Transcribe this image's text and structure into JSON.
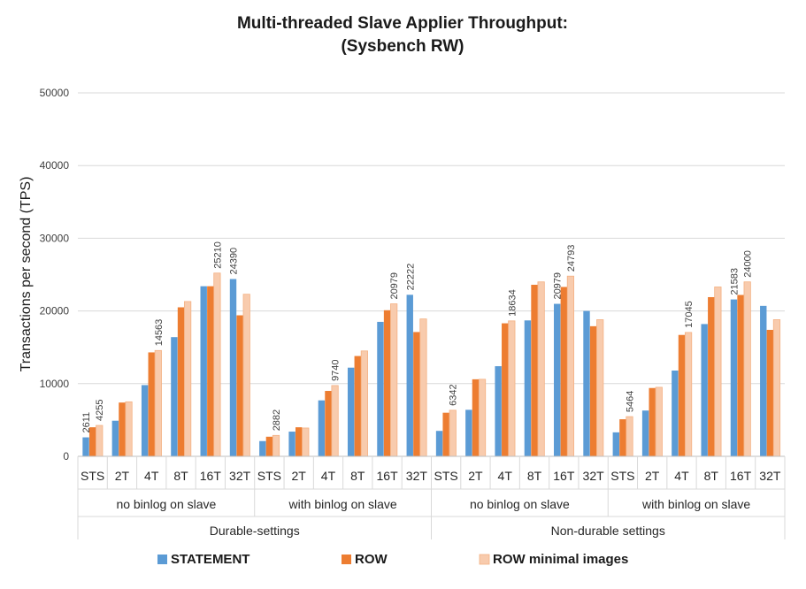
{
  "chart_data": {
    "type": "bar",
    "title": [
      "Multi-threaded Slave Applier Throughput:",
      "(Sysbench RW)"
    ],
    "ylabel": "Transactions per second (TPS)",
    "ylim": [
      0,
      50000
    ],
    "yticks": [
      0,
      10000,
      20000,
      30000,
      40000,
      50000
    ],
    "grid": true,
    "legend_position": "bottom",
    "categories": [
      "STS",
      "2T",
      "4T",
      "8T",
      "16T",
      "32T",
      "STS",
      "2T",
      "4T",
      "8T",
      "16T",
      "32T",
      "STS",
      "2T",
      "4T",
      "8T",
      "16T",
      "32T",
      "STS",
      "2T",
      "4T",
      "8T",
      "16T",
      "32T"
    ],
    "subgroups": [
      {
        "label": "no binlog on slave",
        "size": 6
      },
      {
        "label": "with binlog on slave",
        "size": 6
      },
      {
        "label": "no binlog on slave",
        "size": 6
      },
      {
        "label": "with binlog on slave",
        "size": 6
      }
    ],
    "groups": [
      {
        "label": "Durable-settings",
        "size": 12
      },
      {
        "label": "Non-durable settings",
        "size": 12
      }
    ],
    "series": [
      {
        "name": "STATEMENT",
        "color": "#5B9BD5",
        "values": [
          2611,
          4900,
          9800,
          16400,
          23400,
          24390,
          2100,
          3400,
          7700,
          12200,
          18500,
          22222,
          3500,
          6400,
          12400,
          18700,
          20979,
          20000,
          3300,
          6300,
          11800,
          18200,
          21583,
          20700
        ]
      },
      {
        "name": "ROW",
        "color": "#ED7D31",
        "values": [
          4000,
          7400,
          14300,
          20500,
          23400,
          19400,
          2700,
          4000,
          9000,
          13800,
          20100,
          17100,
          6000,
          10600,
          18300,
          23600,
          23300,
          17900,
          5100,
          9400,
          16700,
          21900,
          22200,
          17400
        ]
      },
      {
        "name": "ROW minimal images",
        "color": "#F8CBAD",
        "values": [
          4255,
          7500,
          14563,
          21300,
          25210,
          22300,
          2882,
          3900,
          9740,
          14500,
          20979,
          18900,
          6342,
          10600,
          18634,
          24000,
          24793,
          18800,
          5464,
          9500,
          17045,
          23300,
          24000,
          18800
        ]
      }
    ],
    "data_labels": [
      {
        "category_index": 0,
        "series_index": 0,
        "text": "2611"
      },
      {
        "category_index": 0,
        "series_index": 2,
        "text": "4255"
      },
      {
        "category_index": 2,
        "series_index": 2,
        "text": "14563"
      },
      {
        "category_index": 4,
        "series_index": 2,
        "text": "25210"
      },
      {
        "category_index": 5,
        "series_index": 0,
        "text": "24390"
      },
      {
        "category_index": 6,
        "series_index": 2,
        "text": "2882"
      },
      {
        "category_index": 8,
        "series_index": 2,
        "text": "9740"
      },
      {
        "category_index": 10,
        "series_index": 2,
        "text": "20979"
      },
      {
        "category_index": 11,
        "series_index": 0,
        "text": "22222"
      },
      {
        "category_index": 12,
        "series_index": 2,
        "text": "6342"
      },
      {
        "category_index": 14,
        "series_index": 2,
        "text": "18634"
      },
      {
        "category_index": 16,
        "series_index": 0,
        "text": "20979"
      },
      {
        "category_index": 16,
        "series_index": 2,
        "text": "24793"
      },
      {
        "category_index": 18,
        "series_index": 2,
        "text": "5464"
      },
      {
        "category_index": 20,
        "series_index": 2,
        "text": "17045"
      },
      {
        "category_index": 22,
        "series_index": 0,
        "text": "21583"
      },
      {
        "category_index": 22,
        "series_index": 2,
        "text": "24000"
      }
    ]
  }
}
